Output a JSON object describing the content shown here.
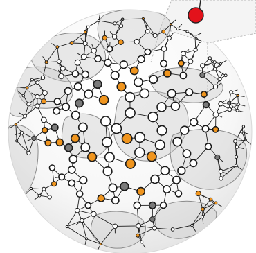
{
  "figure": {
    "colors": {
      "background": "#ffffff",
      "edge": "#1a1a1a",
      "node_open_fill": "#ffffff",
      "node_gray": "#7a7a7a",
      "node_orange": "#f0951e",
      "cluster_fill": "#c7c7c7",
      "cluster_stroke": "#8a8a8a",
      "callout_pin": "#e3121b",
      "callout_panel": "#f4f4f4",
      "callout_line": "#b8b8b8"
    },
    "icons": [
      "sphere-network",
      "cluster-blob",
      "callout-pin"
    ]
  }
}
